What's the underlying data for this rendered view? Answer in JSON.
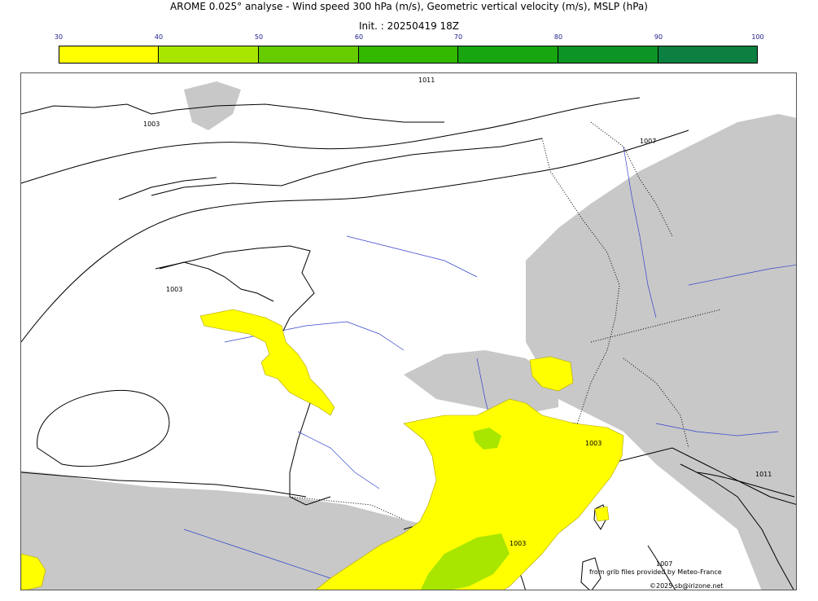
{
  "header": {
    "title": "AROME 0.025° analyse - Wind speed 300 hPa (m/s), Geometric vertical velocity (m/s), MSLP (hPa)",
    "init": "Init. : 20250419 18Z"
  },
  "colorbar": {
    "ticks": [
      "30",
      "40",
      "50",
      "60",
      "70",
      "80",
      "90",
      "100"
    ],
    "colors": [
      "#ffff00",
      "#a8e600",
      "#66cc00",
      "#33b800",
      "#17a60f",
      "#0d9426",
      "#0b8040",
      "#087050"
    ]
  },
  "map": {
    "isobar_labels": [
      "1011",
      "1007",
      "1003",
      "1003",
      "1003",
      "1003",
      "1011",
      "1007"
    ],
    "wind_color": "#ffff00",
    "wind_color_strong": "#a8e600",
    "vertical_velocity_color": "#c8c8c8",
    "coast_color": "#000000",
    "river_color": "#3344cc"
  },
  "credits": {
    "source": "from grib files provided by Meteo-France",
    "copyright": "©2025 sb@irizone.net"
  }
}
